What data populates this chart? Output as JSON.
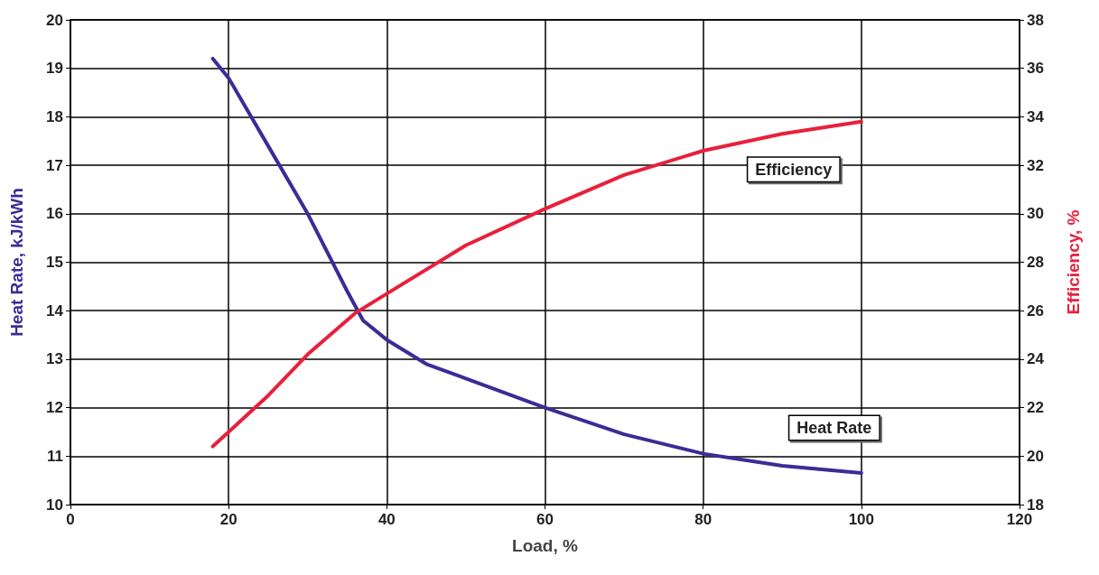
{
  "chart_data": {
    "type": "line",
    "xlabel": "Load, %",
    "ylabel": "Heat Rate, kJ/kWh",
    "y2label": "Efficiency, %",
    "xlim": [
      0,
      120
    ],
    "xticks": [
      0,
      20,
      40,
      60,
      80,
      100,
      120
    ],
    "ylim": [
      10,
      20
    ],
    "yticks": [
      10,
      11,
      12,
      13,
      14,
      15,
      16,
      17,
      18,
      19,
      20
    ],
    "y2lim": [
      18,
      38
    ],
    "y2ticks": [
      18,
      20,
      22,
      24,
      26,
      28,
      30,
      32,
      34,
      36,
      38
    ],
    "grid": true,
    "marker": "none",
    "line_style": "solid",
    "series": [
      {
        "name": "Heat Rate",
        "color": "#3b2c96",
        "x": [
          18,
          20,
          25,
          30,
          35,
          37,
          40,
          45,
          50,
          60,
          70,
          80,
          90,
          100
        ],
        "values": [
          19.2,
          18.8,
          17.4,
          16.0,
          14.4,
          13.8,
          13.4,
          12.9,
          12.6,
          12.0,
          11.45,
          11.05,
          10.8,
          10.65
        ]
      },
      {
        "name": "Efficiency",
        "color": "#e8203c",
        "axis": "y2",
        "x": [
          18,
          20,
          25,
          30,
          36,
          40,
          50,
          60,
          70,
          80,
          90,
          100
        ],
        "values": [
          20.4,
          21.0,
          22.5,
          24.2,
          25.9,
          26.7,
          28.7,
          30.2,
          31.6,
          32.6,
          33.3,
          33.8
        ]
      }
    ]
  }
}
